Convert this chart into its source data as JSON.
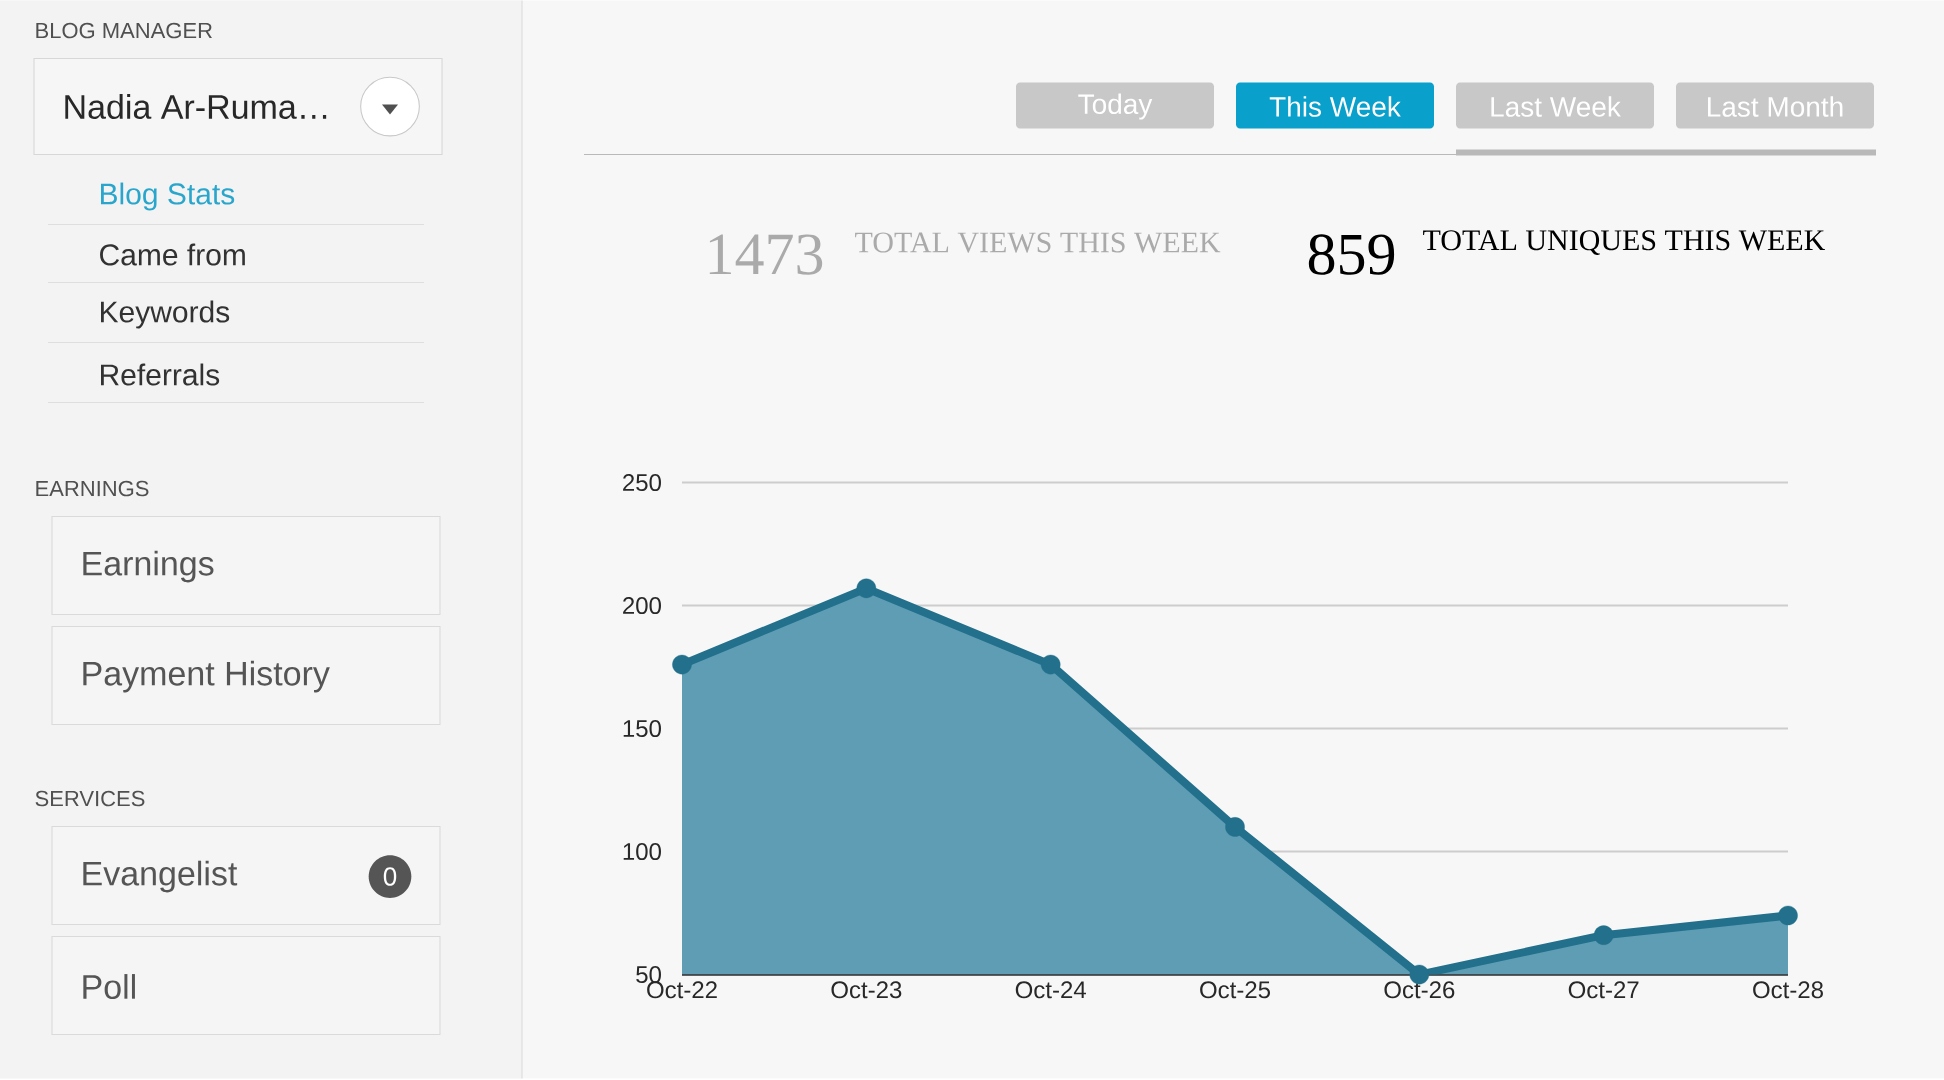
{
  "chart_data": [
    {
      "type": "other",
      "annotations": [
        "BLOG MANAGER",
        "Nadia Ar-Ruma…",
        "Blog Stats",
        "Came from",
        "Keywords",
        "Referrals",
        "EARNINGS",
        "Earnings",
        "Payment History",
        "SERVICES",
        "Evangelist",
        "0",
        "Poll"
      ]
    },
    {
      "type": "other",
      "annotations": [
        "Today",
        "This Week",
        "Last Week",
        "Last Month",
        "1473",
        "TOTAL VIEWS THIS WEEK",
        "859",
        "TOTAL UNIQUES THIS WEEK"
      ],
      "colors": [
        "#c8c8c8",
        "#0aa0cc",
        "#c8c8c8",
        "#c8c8c8"
      ]
    },
    {
      "type": "area",
      "categories": [
        "Oct-22",
        "Oct-23",
        "Oct-24",
        "Oct-25",
        "Oct-26",
        "Oct-27",
        "Oct-28"
      ],
      "series": [
        {
          "color": "#5f9db4",
          "values": [
            176,
            207,
            176,
            110,
            50,
            66,
            74
          ]
        }
      ],
      "ylim": [
        50,
        250
      ],
      "yticks": [
        50,
        100,
        150,
        200,
        250
      ],
      "grid": "y",
      "marker": "circle"
    }
  ]
}
